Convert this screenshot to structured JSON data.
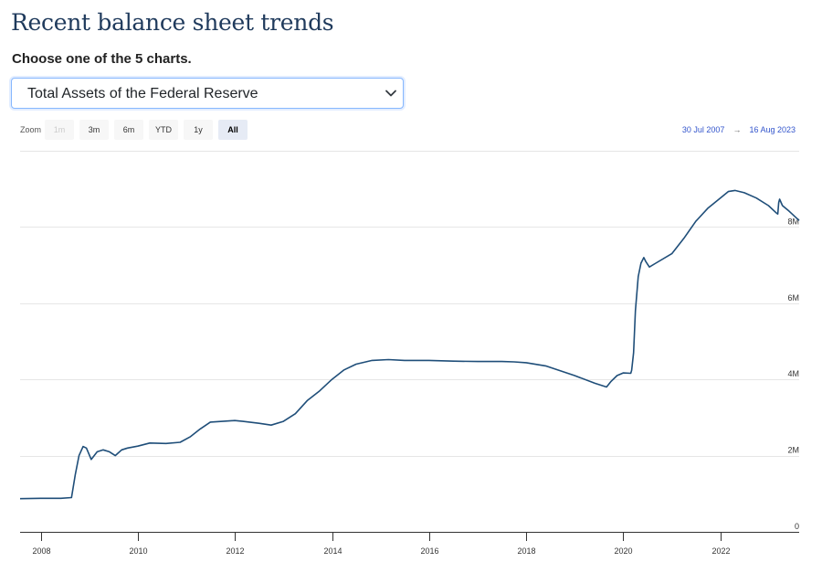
{
  "page": {
    "title": "Recent balance sheet trends",
    "choose_label": "Choose one of the 5 charts.",
    "selected_chart": "Total Assets of the Federal Reserve"
  },
  "zoom": {
    "label": "Zoom",
    "buttons": [
      {
        "label": "1m",
        "state": "disabled"
      },
      {
        "label": "3m",
        "state": "normal"
      },
      {
        "label": "6m",
        "state": "normal"
      },
      {
        "label": "YTD",
        "state": "normal"
      },
      {
        "label": "1y",
        "state": "normal"
      },
      {
        "label": "All",
        "state": "active"
      }
    ],
    "from_date": "30 Jul 2007",
    "arrow": "→",
    "to_date": "16 Aug 2023"
  },
  "colors": {
    "line": "#1f4e79",
    "grid": "#e6e6e6",
    "axis": "#333333",
    "date_text": "#3355cc",
    "title": "#1f3a5c"
  },
  "chart_data": {
    "type": "line",
    "title": "",
    "xlabel": "",
    "ylabel": "",
    "x_range": [
      "2007-07-30",
      "2023-08-16"
    ],
    "ylim": [
      0,
      10000000
    ],
    "y_ticks": [
      {
        "value": 0,
        "label": "0"
      },
      {
        "value": 2000000,
        "label": "2M"
      },
      {
        "value": 4000000,
        "label": "4M"
      },
      {
        "value": 6000000,
        "label": "6M"
      },
      {
        "value": 8000000,
        "label": "8M"
      }
    ],
    "x_ticks": [
      {
        "date": "2008-01-01",
        "label": "2008"
      },
      {
        "date": "2010-01-01",
        "label": "2010"
      },
      {
        "date": "2012-01-01",
        "label": "2012"
      },
      {
        "date": "2014-01-01",
        "label": "2014"
      },
      {
        "date": "2016-01-01",
        "label": "2016"
      },
      {
        "date": "2018-01-01",
        "label": "2018"
      },
      {
        "date": "2020-01-01",
        "label": "2020"
      },
      {
        "date": "2022-01-01",
        "label": "2022"
      }
    ],
    "grid": true,
    "legend": "none",
    "series": [
      {
        "x": [
          "2007-07-30",
          "2008-01-01",
          "2008-06-01",
          "2008-08-20",
          "2008-09-17",
          "2008-10-15",
          "2008-11-15",
          "2008-12-10",
          "2009-01-15",
          "2009-03-01",
          "2009-04-15",
          "2009-06-01",
          "2009-07-15",
          "2009-09-01",
          "2009-10-15",
          "2010-01-01",
          "2010-04-01",
          "2010-08-01",
          "2010-11-15",
          "2011-02-01",
          "2011-04-15",
          "2011-06-30",
          "2011-12-31",
          "2012-03-01",
          "2012-06-30",
          "2012-09-30",
          "2012-12-31",
          "2013-03-31",
          "2013-06-30",
          "2013-09-30",
          "2013-12-31",
          "2014-04-01",
          "2014-07-01",
          "2014-10-29",
          "2015-03-01",
          "2015-07-01",
          "2016-01-01",
          "2016-07-01",
          "2017-01-01",
          "2017-07-01",
          "2017-10-01",
          "2018-01-01",
          "2018-06-01",
          "2018-12-31",
          "2019-06-01",
          "2019-08-28",
          "2019-10-01",
          "2019-11-15",
          "2019-12-31",
          "2020-02-26",
          "2020-03-04",
          "2020-03-18",
          "2020-04-01",
          "2020-04-22",
          "2020-05-13",
          "2020-06-03",
          "2020-06-17",
          "2020-07-15",
          "2020-09-01",
          "2020-12-31",
          "2021-03-31",
          "2021-06-30",
          "2021-09-30",
          "2021-12-31",
          "2022-03-01",
          "2022-04-20",
          "2022-06-29",
          "2022-09-28",
          "2022-12-28",
          "2023-02-22",
          "2023-03-08",
          "2023-03-15",
          "2023-03-22",
          "2023-04-12",
          "2023-05-31",
          "2023-08-16"
        ],
        "values": [
          870000,
          880000,
          880000,
          900000,
          1500000,
          2000000,
          2240000,
          2200000,
          1900000,
          2100000,
          2150000,
          2100000,
          2000000,
          2150000,
          2200000,
          2250000,
          2330000,
          2320000,
          2350000,
          2500000,
          2700000,
          2880000,
          2920000,
          2900000,
          2850000,
          2800000,
          2900000,
          3100000,
          3450000,
          3700000,
          4000000,
          4250000,
          4400000,
          4500000,
          4520000,
          4500000,
          4500000,
          4480000,
          4470000,
          4470000,
          4460000,
          4440000,
          4350000,
          4100000,
          3900000,
          3800000,
          3950000,
          4100000,
          4170000,
          4160000,
          4240000,
          4700000,
          5800000,
          6700000,
          7050000,
          7200000,
          7100000,
          6950000,
          7050000,
          7300000,
          7700000,
          8150000,
          8500000,
          8760000,
          8930000,
          8960000,
          8900000,
          8760000,
          8560000,
          8380000,
          8340000,
          8640000,
          8730000,
          8560000,
          8420000,
          8170000
        ]
      }
    ]
  }
}
